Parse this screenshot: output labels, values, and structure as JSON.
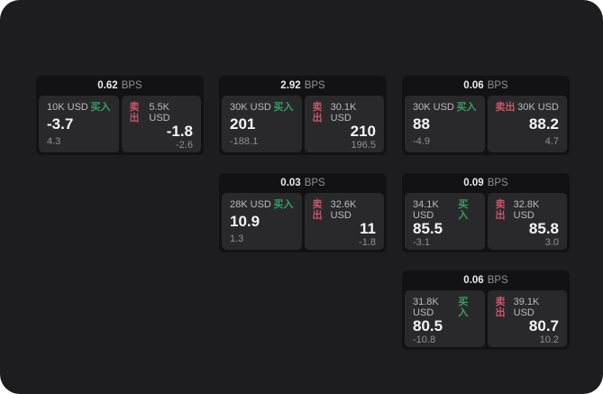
{
  "labels": {
    "bps_unit": "BPS",
    "buy": "买入",
    "sell": "卖出"
  },
  "colors": {
    "surface": "#1d1d1f",
    "card_frame": "#121214",
    "panel": "#29292b",
    "buy_green": "#37a05f",
    "sell_red": "#c9556a",
    "primary_text": "#f4f5f6",
    "secondary_text": "#8f9094"
  },
  "cards": [
    {
      "bps": "0.62",
      "buy": {
        "amount": "10K USD",
        "price": "-3.7",
        "sub": "4.3"
      },
      "sell": {
        "amount": "5.5K USD",
        "price": "-1.8",
        "sub": "-2.6"
      }
    },
    {
      "bps": "2.92",
      "buy": {
        "amount": "30K USD",
        "price": "201",
        "sub": "-188.1"
      },
      "sell": {
        "amount": "30.1K USD",
        "price": "210",
        "sub": "196.5"
      }
    },
    {
      "bps": "0.06",
      "buy": {
        "amount": "30K USD",
        "price": "88",
        "sub": "-4.9"
      },
      "sell": {
        "amount": "30K USD",
        "price": "88.2",
        "sub": "4.7"
      }
    },
    {
      "bps": "0.03",
      "buy": {
        "amount": "28K USD",
        "price": "10.9",
        "sub": "1.3"
      },
      "sell": {
        "amount": "32.6K USD",
        "price": "11",
        "sub": "-1.8"
      }
    },
    {
      "bps": "0.09",
      "buy": {
        "amount": "34.1K USD",
        "price": "85.5",
        "sub": "-3.1"
      },
      "sell": {
        "amount": "32.8K USD",
        "price": "85.8",
        "sub": "3.0"
      }
    },
    {
      "bps": "0.06",
      "buy": {
        "amount": "31.8K USD",
        "price": "80.5",
        "sub": "-10.8"
      },
      "sell": {
        "amount": "39.1K USD",
        "price": "80.7",
        "sub": "10.2"
      }
    }
  ]
}
